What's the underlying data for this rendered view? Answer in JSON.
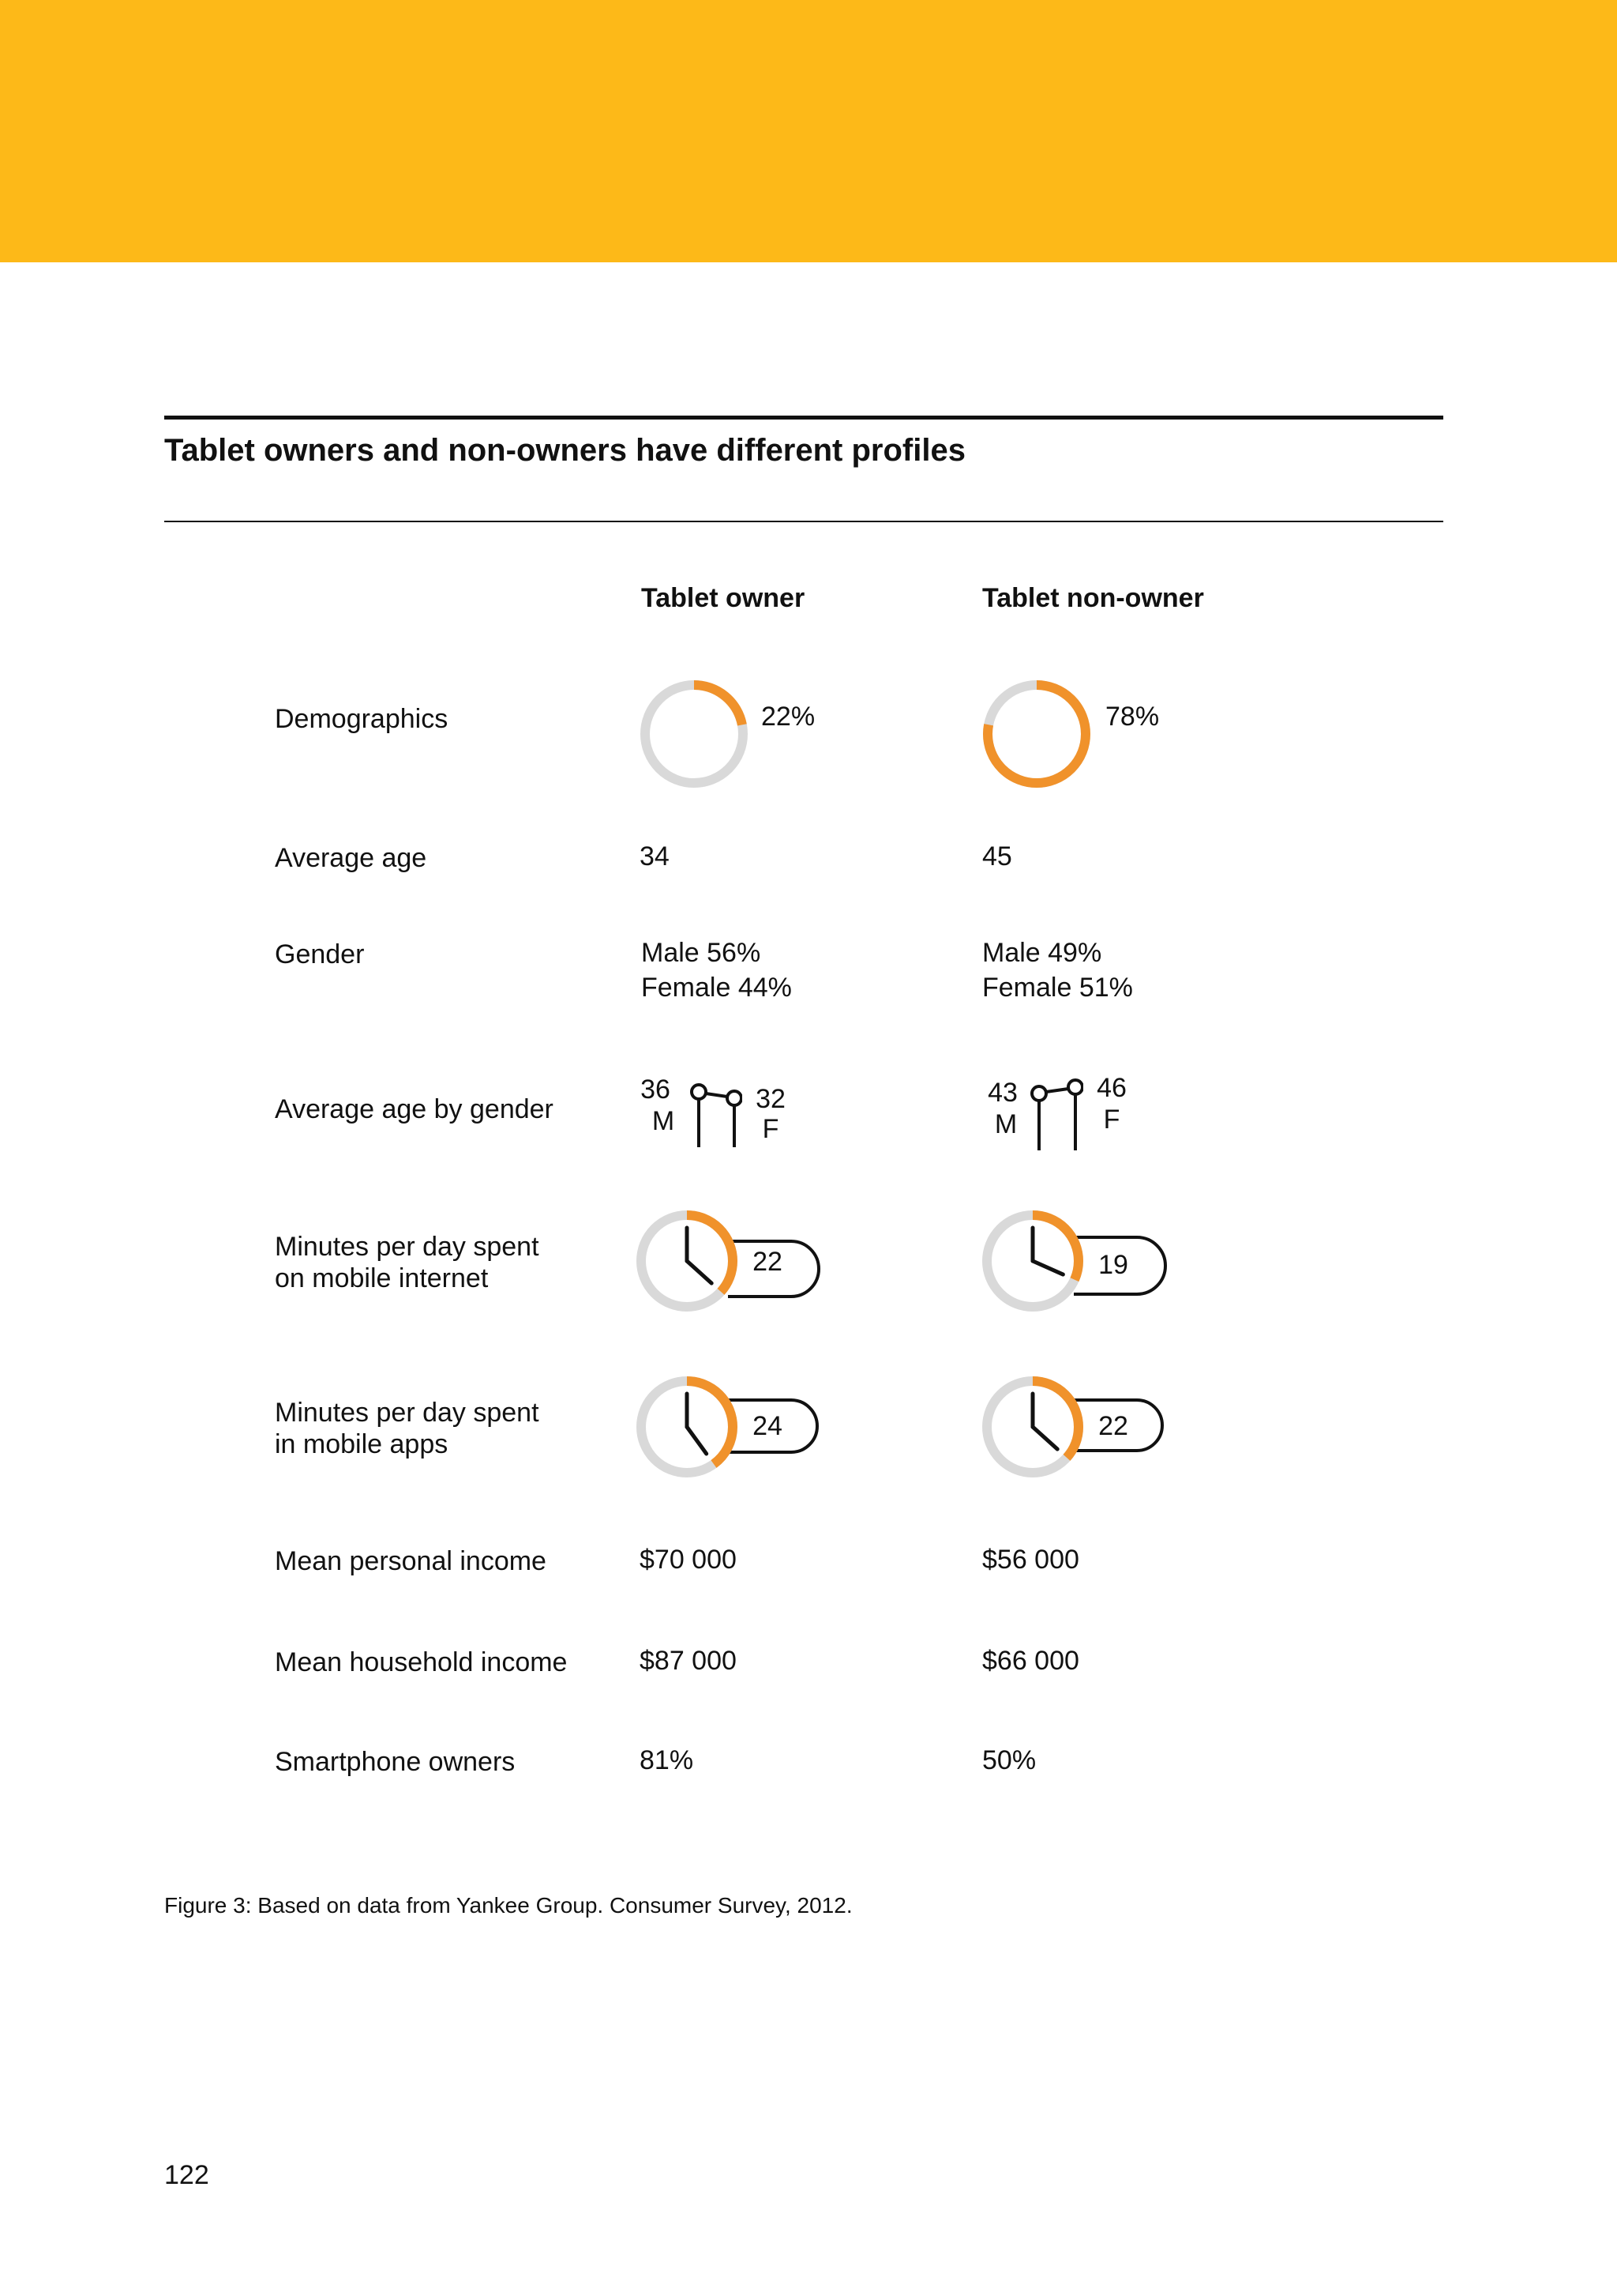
{
  "header_band": {
    "color": "#FDB918"
  },
  "figure": {
    "title": "Tablet owners and non-owners have different profiles",
    "columns": [
      "Tablet owner",
      "Tablet non-owner"
    ],
    "rows": {
      "demographics": {
        "label": "Demographics",
        "owner": {
          "text": "22%",
          "fraction": 0.22
        },
        "non_owner": {
          "text": "78%",
          "fraction": 0.78
        }
      },
      "average_age": {
        "label": "Average age",
        "owner": "34",
        "non_owner": "45"
      },
      "gender": {
        "label": "Gender",
        "owner": [
          "Male  56%",
          "Female  44%"
        ],
        "non_owner": [
          "Male  49%",
          "Female  51%"
        ]
      },
      "average_age_by_gender": {
        "label": "Average age by gender",
        "owner": {
          "male": "36",
          "male_letter": "M",
          "female": "32",
          "female_letter": "F"
        },
        "non_owner": {
          "male": "43",
          "male_letter": "M",
          "female": "46",
          "female_letter": "F"
        }
      },
      "minutes_mobile_internet": {
        "label_lines": [
          "Minutes per day spent",
          "on mobile internet"
        ],
        "owner": {
          "text": "22",
          "minutes": 22
        },
        "non_owner": {
          "text": "19",
          "minutes": 19
        }
      },
      "minutes_mobile_apps": {
        "label_lines": [
          "Minutes per day spent",
          "in mobile apps"
        ],
        "owner": {
          "text": "24",
          "minutes": 24
        },
        "non_owner": {
          "text": "22",
          "minutes": 22
        }
      },
      "mean_personal_income": {
        "label": "Mean personal income",
        "owner": "$70 000",
        "non_owner": "$56 000"
      },
      "mean_household_income": {
        "label": "Mean household income",
        "owner": "$87 000",
        "non_owner": "$66 000"
      },
      "smartphone_owners": {
        "label": "Smartphone owners",
        "owner": "81%",
        "non_owner": "50%"
      }
    },
    "caption": "Figure 3: Based on data from Yankee Group. Consumer Survey, 2012.",
    "colors": {
      "accent": "#F0922B",
      "track": "#D9D9D9",
      "ink": "#111111"
    }
  },
  "page_number": "122"
}
